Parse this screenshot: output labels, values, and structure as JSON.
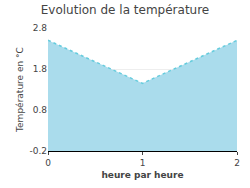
{
  "chart_data": {
    "type": "area",
    "title": "Evolution de la température",
    "x_label": "heure par heure",
    "y_label": "Température en °C",
    "x": [
      0,
      1,
      2
    ],
    "series": [
      {
        "values": [
          2.5,
          1.45,
          2.5
        ],
        "color": "#66ccdd",
        "line_style": "dotted"
      }
    ],
    "color": "#aadcec",
    "xlim": [
      0,
      2
    ],
    "xticks": [
      0,
      1,
      2
    ],
    "ylim": [
      -0.2,
      2.8
    ],
    "yticks": [
      -0.2,
      0.8,
      1.8,
      2.8
    ],
    "grid": true
  }
}
